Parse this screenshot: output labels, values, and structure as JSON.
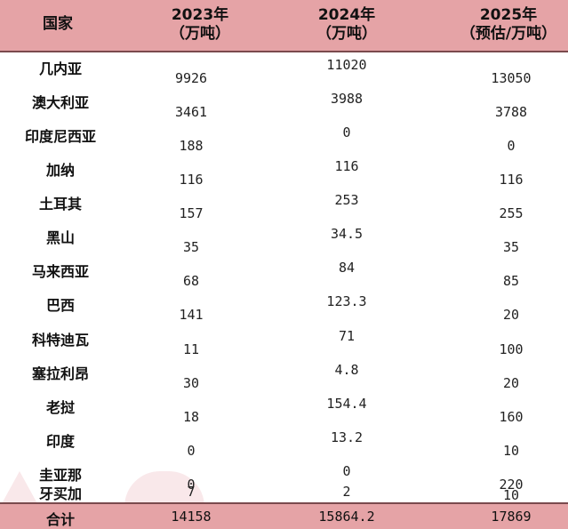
{
  "header": {
    "country": "国家",
    "col1_line1": "2023年",
    "col1_line2": "（万吨）",
    "col2_line1": "2024年",
    "col2_line2": "（万吨）",
    "col3_line1": "2025年",
    "col3_line2": "（预估/万吨）"
  },
  "rows": [
    {
      "country": "几内亚",
      "y2023": "9926",
      "y2024": "11020",
      "y2025": "13050"
    },
    {
      "country": "澳大利亚",
      "y2023": "3461",
      "y2024": "3988",
      "y2025": "3788"
    },
    {
      "country": "印度尼西亚",
      "y2023": "188",
      "y2024": "0",
      "y2025": "0"
    },
    {
      "country": "加纳",
      "y2023": "116",
      "y2024": "116",
      "y2025": "116"
    },
    {
      "country": "土耳其",
      "y2023": "157",
      "y2024": "253",
      "y2025": "255"
    },
    {
      "country": "黑山",
      "y2023": "35",
      "y2024": "34.5",
      "y2025": "35"
    },
    {
      "country": "马来西亚",
      "y2023": "68",
      "y2024": "84",
      "y2025": "85"
    },
    {
      "country": "巴西",
      "y2023": "141",
      "y2024": "123.3",
      "y2025": "20"
    },
    {
      "country": "科特迪瓦",
      "y2023": "11",
      "y2024": "71",
      "y2025": "100"
    },
    {
      "country": "塞拉利昂",
      "y2023": "30",
      "y2024": "4.8",
      "y2025": "20"
    },
    {
      "country": "老挝",
      "y2023": "18",
      "y2024": "154.4",
      "y2025": "160"
    },
    {
      "country": "印度",
      "y2023": "0",
      "y2024": "13.2",
      "y2025": "10"
    },
    {
      "country": "圭亚那",
      "y2023": "0",
      "y2024": "0",
      "y2025": "220"
    },
    {
      "country": "牙买加",
      "y2023": "7",
      "y2024": "2",
      "y2025": "10"
    }
  ],
  "total": {
    "label": "合计",
    "y2023": "14158",
    "y2024": "15864.2",
    "y2025": "17869"
  },
  "colors": {
    "header_bg": "#e5a3a6",
    "border": "#7a4a4d"
  }
}
